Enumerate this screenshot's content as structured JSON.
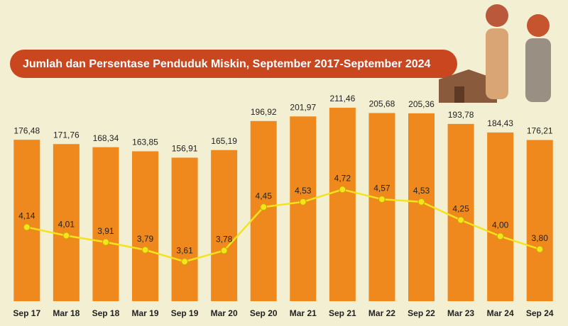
{
  "chart_data": {
    "type": "bar",
    "title": "Jumlah dan Persentase Penduduk Miskin, September 2017-September 2024",
    "categories": [
      "Sep 17",
      "Mar 18",
      "Sep 18",
      "Mar 19",
      "Sep 19",
      "Mar 20",
      "Sep 20",
      "Mar 21",
      "Sep 21",
      "Mar 22",
      "Sep 22",
      "Mar 23",
      "Mar 24",
      "Sep 24"
    ],
    "series": [
      {
        "type": "bar",
        "color": "#f0891d",
        "values": [
          176.48,
          171.76,
          168.34,
          163.85,
          156.91,
          165.19,
          196.92,
          201.97,
          211.46,
          205.68,
          205.36,
          193.78,
          184.43,
          176.21
        ],
        "value_labels": [
          "176,48",
          "171,76",
          "168,34",
          "163,85",
          "156,91",
          "165,19",
          "196,92",
          "201,97",
          "211,46",
          "205,68",
          "205,36",
          "193,78",
          "184,43",
          "176,21"
        ]
      },
      {
        "type": "line",
        "axis": "y2",
        "color": "#f3e41c",
        "values": [
          4.14,
          4.01,
          3.91,
          3.79,
          3.61,
          3.78,
          4.45,
          4.53,
          4.72,
          4.57,
          4.53,
          4.25,
          4.0,
          3.8
        ],
        "value_labels": [
          "4,14",
          "4,01",
          "3,91",
          "3,79",
          "3,61",
          "3,78",
          "4,45",
          "4,53",
          "4,72",
          "4,57",
          "4,53",
          "4,25",
          "4,00",
          "3,80"
        ]
      }
    ],
    "ylim": [
      0,
      220
    ],
    "y2lim": [
      3,
      6.1
    ]
  }
}
